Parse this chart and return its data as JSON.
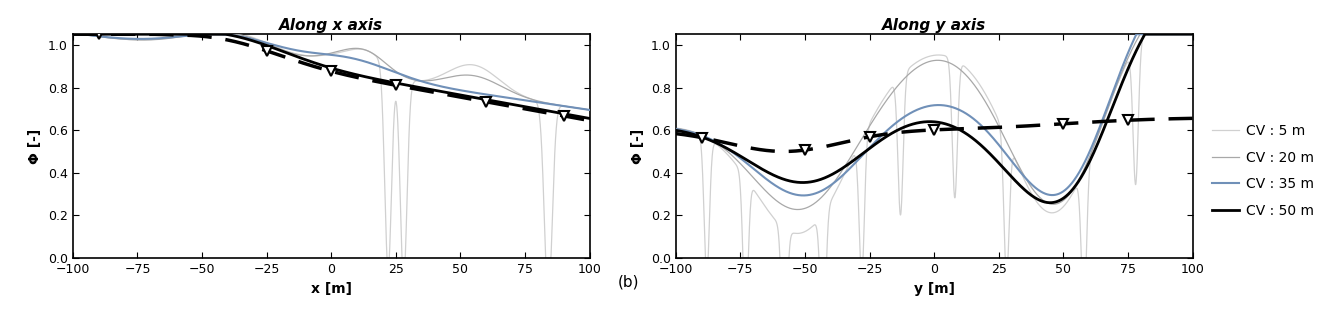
{
  "title_left": "Along x axis",
  "title_right": "Along y axis",
  "xlabel_left": "x [m]",
  "xlabel_right": "y [m]",
  "ylabel": "Φ [-]",
  "label_b": "(b)",
  "xlim": [
    -100,
    100
  ],
  "ylim": [
    0,
    1.05
  ],
  "yticks": [
    0,
    0.2,
    0.4,
    0.6,
    0.8,
    1
  ],
  "xticks": [
    -100,
    -75,
    -50,
    -25,
    0,
    25,
    50,
    75,
    100
  ],
  "legend_labels": [
    "CV : 5 m",
    "CV : 20 m",
    "CV : 35 m",
    "CV : 50 m"
  ],
  "colors": {
    "cv5": "#d0d0d0",
    "cv20": "#a8a8a8",
    "cv35": "#7090b8",
    "cv50": "#000000",
    "dashed": "#000000"
  },
  "linewidths": {
    "cv5": 0.9,
    "cv20": 0.9,
    "cv35": 1.5,
    "cv50": 2.0,
    "dashed": 2.5
  },
  "marker_x_positions": [
    -90,
    -25,
    0,
    25,
    60,
    90
  ],
  "marker_y_positions": [
    -90,
    -50,
    -25,
    0,
    50,
    75
  ]
}
